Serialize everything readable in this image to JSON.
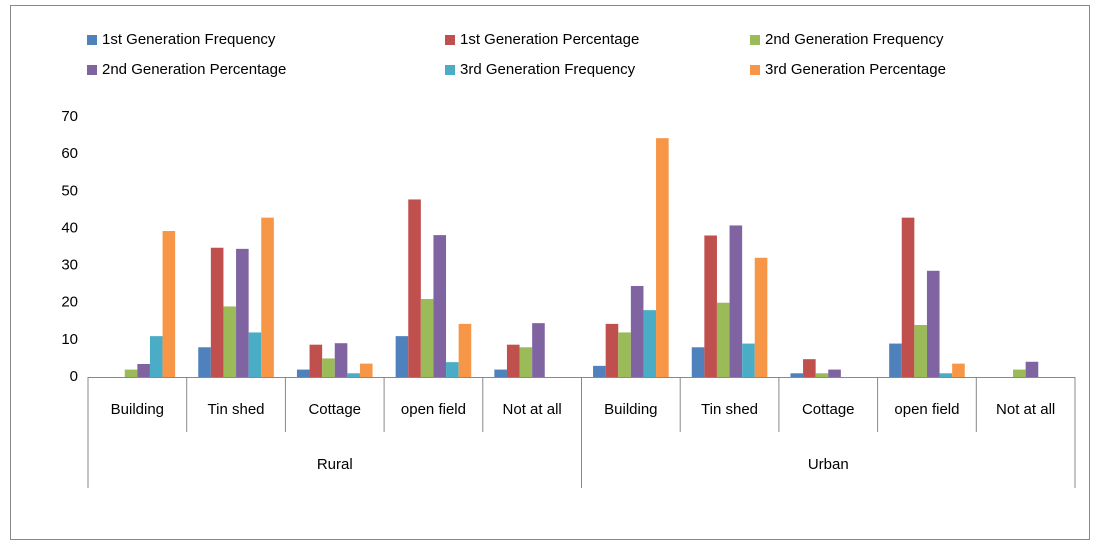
{
  "chart_data": {
    "type": "bar",
    "categories": [
      "Building",
      "Tin shed",
      "Cottage",
      "open field",
      "Not at all",
      "Building",
      "Tin shed",
      "Cottage",
      "open field",
      "Not at all"
    ],
    "groups": [
      "Rural",
      "Urban"
    ],
    "series": [
      {
        "name": "1st Generation Frequency",
        "color": "#4f81bd",
        "values": [
          0,
          8,
          2,
          11,
          2,
          3,
          8,
          1,
          9,
          0
        ]
      },
      {
        "name": "1st Generation Percentage",
        "color": "#c0504d",
        "values": [
          0,
          34.8,
          8.7,
          47.8,
          8.7,
          14.3,
          38.1,
          4.8,
          42.9,
          0
        ]
      },
      {
        "name": "2nd Generation Frequency",
        "color": "#9bbb59",
        "values": [
          2,
          19,
          5,
          21,
          8,
          12,
          20,
          1,
          14,
          2
        ]
      },
      {
        "name": "2nd Generation Percentage",
        "color": "#8064a2",
        "values": [
          3.5,
          34.5,
          9.1,
          38.2,
          14.5,
          24.5,
          40.8,
          2,
          28.6,
          4.1
        ]
      },
      {
        "name": "3rd Generation Frequency",
        "color": "#4bacc6",
        "values": [
          11,
          12,
          1,
          4,
          0,
          18,
          9,
          0,
          1,
          0
        ]
      },
      {
        "name": "3rd Generation Percentage",
        "color": "#f79646",
        "values": [
          39.3,
          42.9,
          3.6,
          14.3,
          0,
          64.3,
          32.1,
          0,
          3.6,
          0
        ]
      }
    ],
    "ylim": [
      0,
      70
    ],
    "yticks": [
      0,
      10,
      20,
      30,
      40,
      50,
      60,
      70
    ],
    "grid": false
  }
}
